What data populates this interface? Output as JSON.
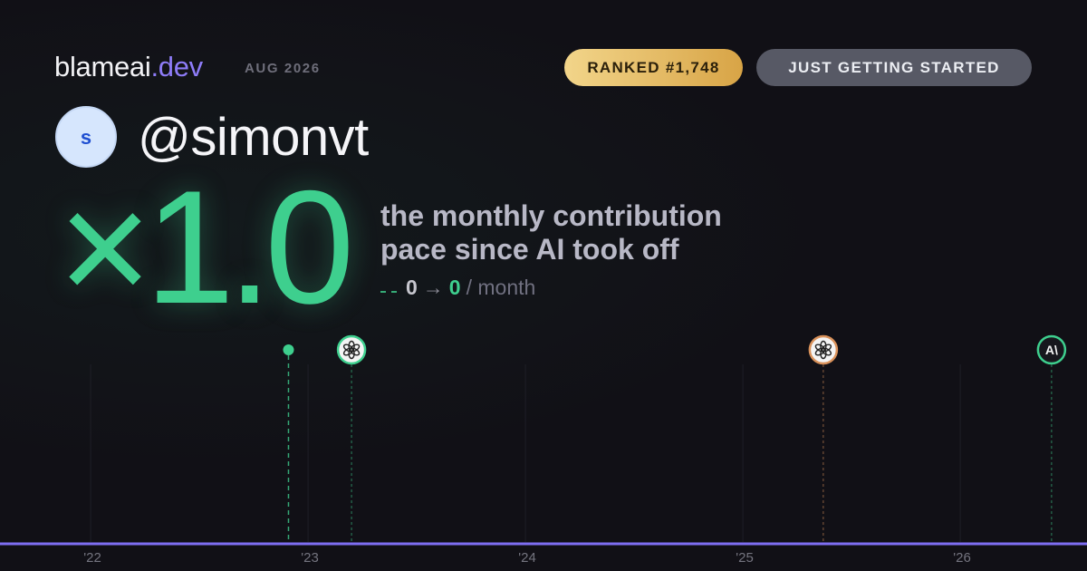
{
  "brand": {
    "name": "blameai",
    "tld": ".dev",
    "date": "AUG 2026"
  },
  "badges": {
    "rank": "RANKED #1,748",
    "status": "JUST GETTING STARTED"
  },
  "profile": {
    "initial": "s",
    "handle": "@simonvt"
  },
  "headline": {
    "multiplier": "×1.0",
    "lines": [
      "the monthly contribution",
      "pace since AI took off"
    ]
  },
  "pace": {
    "from": "0",
    "arrow": "→",
    "to": "0",
    "unit": "/ month"
  },
  "timeline": {
    "xlim": [
      2021.583,
      2026.583
    ],
    "xticks": [
      {
        "value": 2022,
        "label": "'22"
      },
      {
        "value": 2023,
        "label": "'23"
      },
      {
        "value": 2024,
        "label": "'24"
      },
      {
        "value": 2025,
        "label": "'25"
      },
      {
        "value": 2026,
        "label": "'26"
      }
    ],
    "start": {
      "x": 2022.91,
      "color": "#3ecf8e"
    },
    "markers": [
      {
        "x": 2023.2,
        "color": "#3ecf8e"
      },
      {
        "x": 2025.37,
        "color": "#d9915a"
      },
      {
        "x": 2026.42,
        "color": "#3ecf8e",
        "label": "A\\"
      }
    ]
  }
}
